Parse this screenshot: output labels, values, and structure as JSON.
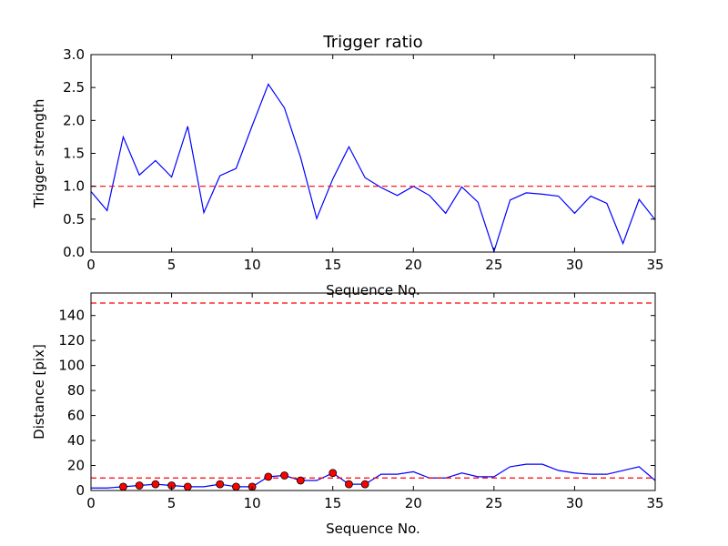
{
  "colors": {
    "line": "#0000ff",
    "threshold": "#ff0000",
    "marker_fill": "#ff0000",
    "marker_edge": "#000000",
    "axes": "#000000",
    "background": "#ffffff"
  },
  "chart_data": [
    {
      "type": "line",
      "title": "Trigger ratio",
      "xlabel": "Sequence No.",
      "ylabel": "Trigger strength",
      "xlim": [
        0,
        35
      ],
      "ylim": [
        0,
        3.0
      ],
      "xticks": [
        "0",
        "5",
        "10",
        "15",
        "20",
        "25",
        "30",
        "35"
      ],
      "yticks": [
        "0.0",
        "0.5",
        "1.0",
        "1.5",
        "2.0",
        "2.5",
        "3.0"
      ],
      "grid": false,
      "legend": "none",
      "series": [
        {
          "x": [
            0,
            1,
            2,
            3,
            4,
            5,
            6,
            7,
            8,
            9,
            10,
            11,
            12,
            13,
            14,
            15,
            16,
            17,
            18,
            19,
            20,
            21,
            22,
            23,
            24,
            25,
            26,
            27,
            28,
            29,
            30,
            31,
            32,
            33,
            34,
            35
          ],
          "values": [
            0.92,
            0.63,
            1.75,
            1.17,
            1.39,
            1.14,
            1.91,
            0.6,
            1.16,
            1.27,
            1.92,
            2.55,
            2.19,
            1.44,
            0.51,
            1.11,
            1.6,
            1.13,
            0.98,
            0.86,
            1.0,
            0.86,
            0.59,
            0.99,
            0.76,
            0.01,
            0.79,
            0.9,
            0.88,
            0.85,
            0.59,
            0.85,
            0.74,
            0.13,
            0.8,
            0.49
          ]
        }
      ],
      "reference_lines": [
        {
          "y": 1.0,
          "style": "dashed"
        }
      ]
    },
    {
      "type": "line",
      "title": "",
      "xlabel": "Sequence No.",
      "ylabel": "Distance [pix]",
      "xlim": [
        0,
        35
      ],
      "ylim": [
        0,
        158
      ],
      "xticks": [
        "0",
        "5",
        "10",
        "15",
        "20",
        "25",
        "30",
        "35"
      ],
      "yticks": [
        "0",
        "20",
        "40",
        "60",
        "80",
        "100",
        "120",
        "140"
      ],
      "grid": false,
      "legend": "none",
      "series": [
        {
          "x": [
            0,
            1,
            2,
            3,
            4,
            5,
            6,
            7,
            8,
            9,
            10,
            11,
            12,
            13,
            14,
            15,
            16,
            17,
            18,
            19,
            20,
            21,
            22,
            23,
            24,
            25,
            26,
            27,
            28,
            29,
            30,
            31,
            32,
            33,
            34,
            35
          ],
          "values": [
            2,
            2,
            3,
            4,
            5,
            4,
            3,
            3,
            5,
            3,
            3,
            11,
            12,
            8,
            8,
            14,
            5,
            5,
            13,
            13,
            15,
            10,
            10,
            14,
            11,
            11,
            19,
            21,
            21,
            16,
            14,
            13,
            13,
            16,
            19,
            8
          ],
          "markers": [
            {
              "x": 2,
              "y": 3
            },
            {
              "x": 3,
              "y": 4
            },
            {
              "x": 4,
              "y": 5
            },
            {
              "x": 5,
              "y": 4
            },
            {
              "x": 6,
              "y": 3
            },
            {
              "x": 8,
              "y": 5
            },
            {
              "x": 9,
              "y": 3
            },
            {
              "x": 10,
              "y": 3
            },
            {
              "x": 11,
              "y": 11
            },
            {
              "x": 12,
              "y": 12
            },
            {
              "x": 13,
              "y": 8
            },
            {
              "x": 15,
              "y": 14
            },
            {
              "x": 16,
              "y": 5
            },
            {
              "x": 17,
              "y": 5
            }
          ]
        }
      ],
      "reference_lines": [
        {
          "y": 10,
          "style": "dashed"
        },
        {
          "y": 150,
          "style": "dashed"
        }
      ]
    }
  ]
}
